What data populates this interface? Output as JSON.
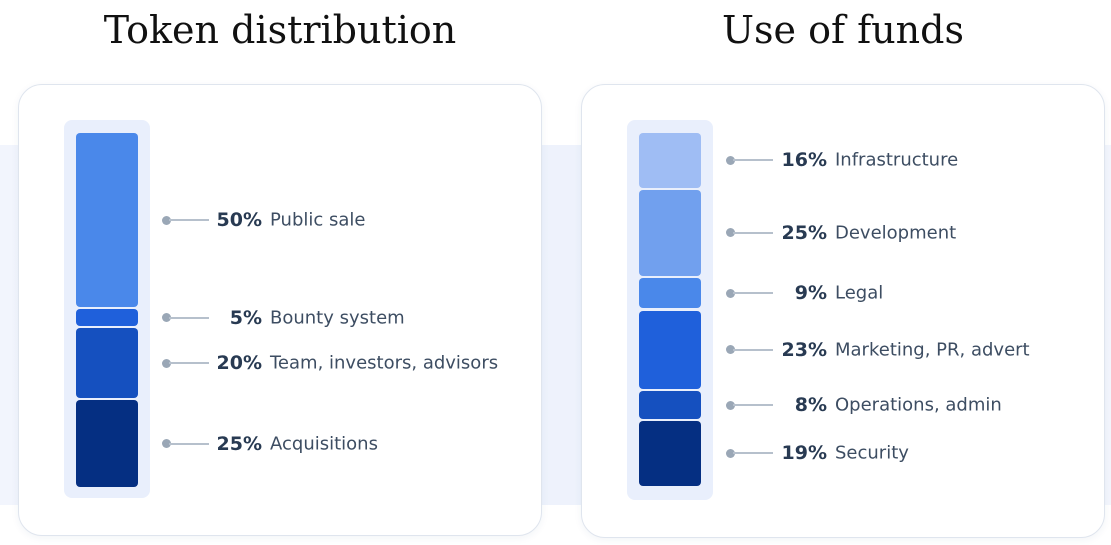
{
  "chart_data": [
    {
      "type": "bar",
      "subtype": "stacked-vertical-single",
      "title": "Token distribution",
      "categories": [
        "Public sale",
        "Bounty system",
        "Team, investors, advisors",
        "Acquisitions"
      ],
      "values": [
        50,
        5,
        20,
        25
      ],
      "value_labels": [
        "50%",
        "5%",
        "20%",
        "25%"
      ],
      "colors": [
        "#4a88ea",
        "#1f60db",
        "#1550bf",
        "#052f82"
      ],
      "legend": "right"
    },
    {
      "type": "bar",
      "subtype": "stacked-vertical-single",
      "title": "Use of funds",
      "categories": [
        "Infrastructure",
        "Development",
        "Legal",
        "Marketing, PR, advert",
        "Operations, admin",
        "Security"
      ],
      "values": [
        16,
        25,
        9,
        23,
        8,
        19
      ],
      "value_labels": [
        "16%",
        "25%",
        "9%",
        "23%",
        "8%",
        "19%"
      ],
      "colors": [
        "#9fbdf4",
        "#71a0ee",
        "#4a88ea",
        "#1f60db",
        "#1550bf",
        "#052f82"
      ],
      "legend": "right"
    }
  ],
  "colors": {
    "track": "#e9effc",
    "leader_dot": "#9aa7b6",
    "leader_line": "#b6c0cc",
    "percent_text": "#283a52",
    "label_text": "#3d4d62"
  }
}
